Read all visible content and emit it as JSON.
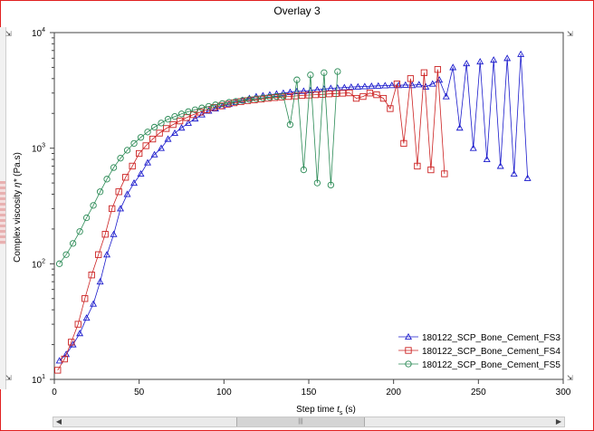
{
  "chart_data": {
    "type": "line",
    "title": "Overlay 3",
    "xlabel": "Step time",
    "xlabel_symbol": "t",
    "xlabel_sub": "s",
    "xlabel_unit": "(s)",
    "ylabel": "Complex viscosity",
    "ylabel_symbol": "η*",
    "ylabel_unit": "(Pa.s)",
    "xlim": [
      0,
      300
    ],
    "ylim": [
      10,
      10000
    ],
    "yscale": "log",
    "xticks": [
      0,
      50,
      100,
      150,
      200,
      250,
      300
    ],
    "xtick_labels": [
      "0",
      "50",
      "100",
      "150",
      "200",
      "250",
      "300"
    ],
    "yticks": [
      10,
      100,
      1000,
      10000
    ],
    "ytick_bases": [
      "10",
      "10",
      "10",
      "10"
    ],
    "ytick_exps": [
      "1",
      "2",
      "3",
      "4"
    ],
    "grid": false,
    "legend_position": "bottom-right",
    "series": [
      {
        "name": "180122_SCP_Bone_Cement_FS3",
        "color": "#1a1acc",
        "marker": "triangle",
        "x": [
          3,
          7,
          11,
          15,
          19,
          23,
          27,
          31,
          35,
          39,
          43,
          47,
          51,
          55,
          59,
          63,
          67,
          71,
          75,
          79,
          83,
          87,
          91,
          95,
          99,
          103,
          107,
          111,
          115,
          119,
          123,
          127,
          131,
          135,
          139,
          143,
          147,
          151,
          155,
          159,
          163,
          167,
          171,
          175,
          179,
          183,
          187,
          191,
          195,
          199,
          203,
          207,
          211,
          215,
          219,
          223,
          227,
          231,
          235,
          239,
          243,
          247,
          251,
          255,
          259,
          263,
          267,
          271,
          275,
          279
        ],
        "y": [
          14.5,
          16.5,
          20,
          25,
          34,
          45,
          70,
          120,
          180,
          300,
          400,
          500,
          600,
          750,
          880,
          1000,
          1200,
          1350,
          1500,
          1650,
          1800,
          1950,
          2100,
          2200,
          2300,
          2400,
          2500,
          2600,
          2700,
          2800,
          2850,
          2900,
          2950,
          3000,
          3050,
          3100,
          3120,
          3150,
          3200,
          3250,
          3300,
          3320,
          3350,
          3380,
          3400,
          3420,
          3440,
          3460,
          3480,
          3500,
          3500,
          3520,
          3500,
          3550,
          3400,
          3600,
          3900,
          2800,
          5000,
          1500,
          5400,
          1000,
          5600,
          800,
          5800,
          700,
          6000,
          600,
          6500,
          550
        ]
      },
      {
        "name": "180122_SCP_Bone_Cement_FS4",
        "color": "#cc2222",
        "marker": "square",
        "x": [
          2,
          6,
          10,
          14,
          18,
          22,
          26,
          30,
          34,
          38,
          42,
          46,
          50,
          54,
          58,
          62,
          66,
          70,
          74,
          78,
          82,
          86,
          90,
          94,
          98,
          102,
          106,
          110,
          114,
          118,
          122,
          126,
          130,
          134,
          138,
          142,
          146,
          150,
          154,
          158,
          162,
          166,
          170,
          174,
          178,
          182,
          186,
          190,
          194,
          198,
          202,
          206,
          210,
          214,
          218,
          222,
          226,
          230
        ],
        "y": [
          12,
          15,
          21,
          30,
          50,
          80,
          120,
          180,
          300,
          420,
          560,
          700,
          900,
          1050,
          1200,
          1350,
          1480,
          1600,
          1720,
          1840,
          1950,
          2050,
          2150,
          2250,
          2320,
          2400,
          2470,
          2530,
          2580,
          2620,
          2660,
          2700,
          2740,
          2770,
          2800,
          2830,
          2860,
          2880,
          2900,
          2920,
          2950,
          2970,
          2990,
          3010,
          2700,
          2800,
          3000,
          2900,
          2700,
          2200,
          3600,
          1100,
          4000,
          700,
          4500,
          650,
          4800,
          600
        ]
      },
      {
        "name": "180122_SCP_Bone_Cement_FS5",
        "color": "#2a8a55",
        "marker": "circle",
        "x": [
          3,
          7,
          11,
          15,
          19,
          23,
          27,
          31,
          35,
          39,
          43,
          47,
          51,
          55,
          59,
          63,
          67,
          71,
          75,
          79,
          83,
          87,
          91,
          95,
          99,
          103,
          107,
          111,
          115,
          119,
          123,
          127,
          131,
          135,
          139,
          143,
          147,
          151,
          155,
          159,
          163,
          167
        ],
        "y": [
          100,
          120,
          150,
          190,
          250,
          320,
          420,
          540,
          680,
          820,
          960,
          1100,
          1240,
          1380,
          1520,
          1650,
          1780,
          1880,
          1980,
          2070,
          2150,
          2230,
          2300,
          2370,
          2430,
          2490,
          2540,
          2590,
          2640,
          2680,
          2720,
          2760,
          2800,
          2830,
          1600,
          3900,
          650,
          4300,
          500,
          4500,
          480,
          4600
        ]
      }
    ]
  }
}
